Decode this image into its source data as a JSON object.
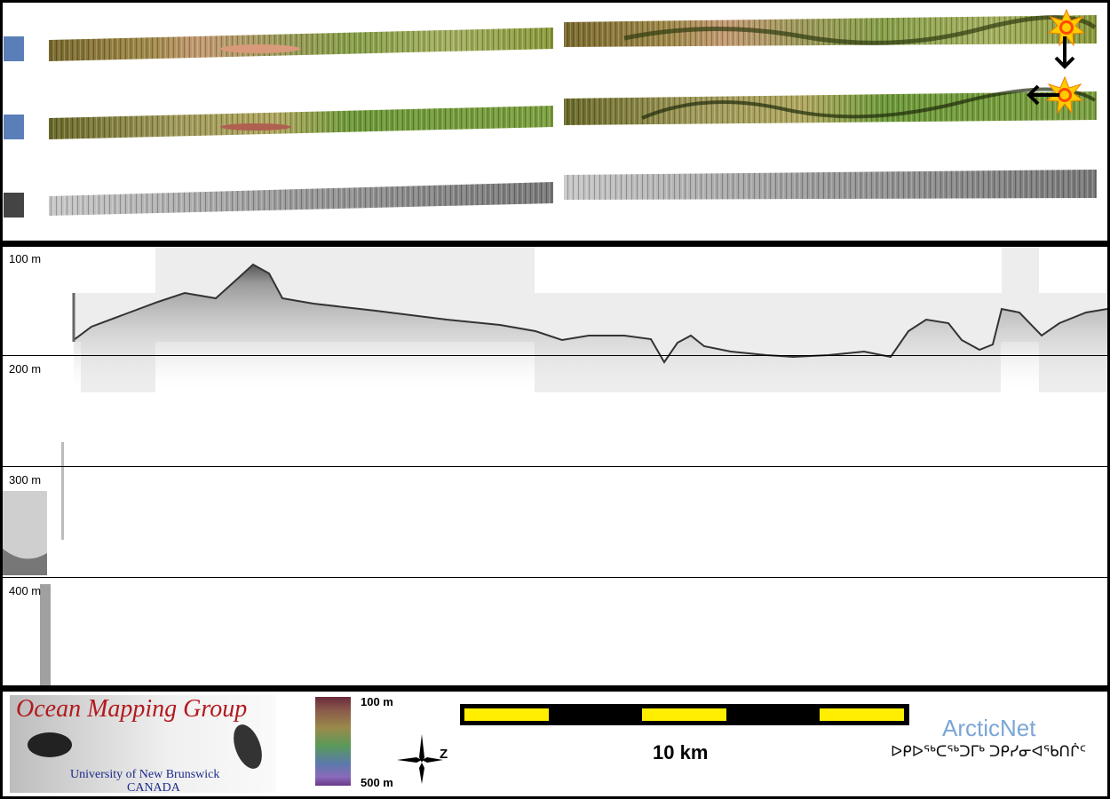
{
  "depth_profile": {
    "depth_labels": [
      "100 m",
      "200 m",
      "300 m",
      "400 m"
    ]
  },
  "legend": {
    "logo_title": "Ocean Mapping Group",
    "logo_subtitle_1": "University of New Brunswick",
    "logo_subtitle_2": "CANADA",
    "colorbar_top": "100 m",
    "colorbar_bottom": "500 m",
    "north_label": "Z",
    "scale_label": "10 km",
    "partner_name": "ArcticNet",
    "partner_syllabics": "ᐅᑭᐅᖅᑕᖅᑐᒥᒃ ᑐᑭᓯᓂᐊᖃᑎᒌᑦ"
  },
  "colors": {
    "panel_bg": "#ffffff",
    "frame": "#000000",
    "scale_bar_fill": "#ffee00",
    "logo_red": "#b3191e",
    "logo_blue": "#1a2a8a",
    "arcticnet_blue": "#7aa6d6"
  }
}
